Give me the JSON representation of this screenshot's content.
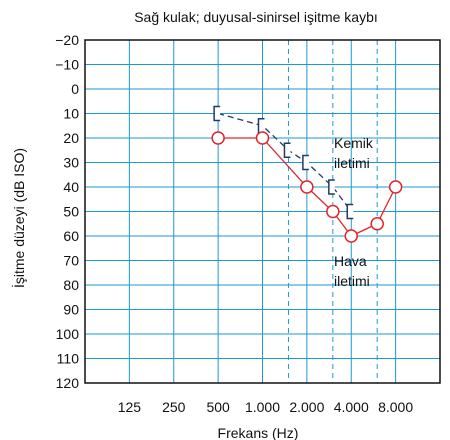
{
  "chart_data": {
    "type": "line",
    "title": "Sağ kulak; duyusal-sinirsel işitme kaybı",
    "xlabel": "Frekans (Hz)",
    "ylabel": "İşitme düzeyi (dB ISO)",
    "x_ticks": [
      "125",
      "250",
      "500",
      "1.000",
      "2.000",
      "4.000",
      "8.000"
    ],
    "y_ticks": [
      -20,
      -10,
      0,
      10,
      20,
      30,
      40,
      50,
      60,
      70,
      80,
      90,
      100,
      110,
      120
    ],
    "ylim": [
      -20,
      120
    ],
    "y_inverted": true,
    "x_scale": "octave",
    "grid": true,
    "series": [
      {
        "name": "Kemik iletimi",
        "marker": "bracket",
        "line_style": "dashed",
        "color": "#1f3a6e",
        "points": [
          {
            "x": 500,
            "y": 10
          },
          {
            "x": 1000,
            "y": 15
          },
          {
            "x": 1500,
            "y": 25
          },
          {
            "x": 2000,
            "y": 30
          },
          {
            "x": 3000,
            "y": 40
          },
          {
            "x": 4000,
            "y": 50
          }
        ]
      },
      {
        "name": "Hava iletimi",
        "marker": "circle",
        "line_style": "solid",
        "color": "#e0242a",
        "points": [
          {
            "x": 500,
            "y": 20
          },
          {
            "x": 1000,
            "y": 20
          },
          {
            "x": 2000,
            "y": 40
          },
          {
            "x": 3000,
            "y": 50
          },
          {
            "x": 4000,
            "y": 60
          },
          {
            "x": 6000,
            "y": 55
          },
          {
            "x": 8000,
            "y": 40
          }
        ]
      }
    ],
    "annotations": [
      {
        "lines": [
          "Kemik",
          "iletimi"
        ]
      },
      {
        "lines": [
          "Hava",
          "iletimi"
        ]
      }
    ],
    "colors": {
      "grid": "#1a9ad6",
      "axis": "#111111"
    }
  }
}
